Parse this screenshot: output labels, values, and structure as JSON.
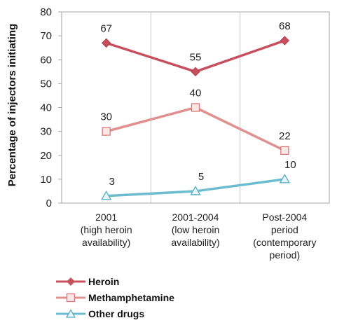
{
  "chart_data": {
    "type": "line",
    "title": "",
    "ylabel": "Percentage of injectors initiating",
    "xlabel": "",
    "ylim": [
      0,
      80
    ],
    "yticks": [
      "0",
      "10",
      "20",
      "30",
      "40",
      "50",
      "60",
      "70",
      "80"
    ],
    "categories": [
      [
        "2001",
        "(high heroin",
        "availability)"
      ],
      [
        "2001-2004",
        "(low heroin",
        "availability)"
      ],
      [
        "Post-2004",
        "period",
        "(contemporary",
        "period)"
      ]
    ],
    "grid": "vertical",
    "legend_position": "bottom-left",
    "series": [
      {
        "name": "Heroin",
        "values": [
          67,
          55,
          68
        ],
        "labels": [
          "67",
          "55",
          "68"
        ],
        "color": "#c8505e",
        "marker": "diamond"
      },
      {
        "name": "Methamphetamine",
        "values": [
          30,
          40,
          22
        ],
        "labels": [
          "30",
          "40",
          "22"
        ],
        "color": "#e0908e",
        "marker": "square"
      },
      {
        "name": "Other drugs",
        "values": [
          3,
          5,
          10
        ],
        "labels": [
          "3",
          "5",
          "10"
        ],
        "color": "#6bbcd0",
        "marker": "triangle"
      }
    ]
  }
}
